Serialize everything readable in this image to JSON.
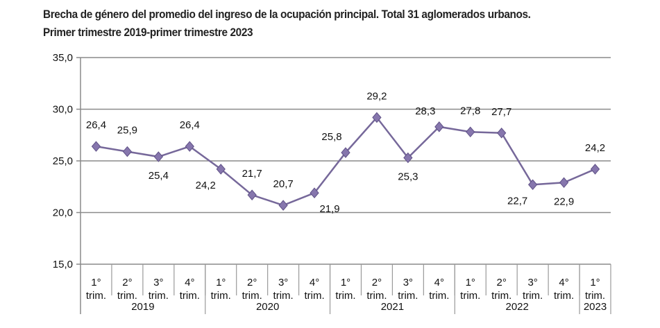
{
  "chart_data": {
    "type": "line",
    "title": "Brecha de género del promedio del ingreso de la ocupación principal. Total 31 aglomerados urbanos.",
    "subtitle": "Primer trimestre 2019-primer trimestre 2023",
    "xlabel": "",
    "ylabel": "",
    "ylim": [
      15,
      35
    ],
    "yticks": [
      "35,0",
      "30,0",
      "25,0",
      "20,0",
      "15,0"
    ],
    "ytick_values": [
      35,
      30,
      25,
      20,
      15
    ],
    "grid": true,
    "categories": [
      {
        "q": "1°",
        "t": "trim."
      },
      {
        "q": "2°",
        "t": "trim."
      },
      {
        "q": "3°",
        "t": "trim."
      },
      {
        "q": "4°",
        "t": "trim."
      },
      {
        "q": "1°",
        "t": "trim."
      },
      {
        "q": "2°",
        "t": "trim."
      },
      {
        "q": "3°",
        "t": "trim."
      },
      {
        "q": "4°",
        "t": "trim."
      },
      {
        "q": "1°",
        "t": "trim."
      },
      {
        "q": "2°",
        "t": "trim."
      },
      {
        "q": "3°",
        "t": "trim."
      },
      {
        "q": "4°",
        "t": "trim."
      },
      {
        "q": "1°",
        "t": "trim."
      },
      {
        "q": "2°",
        "t": "trim."
      },
      {
        "q": "3°",
        "t": "trim."
      },
      {
        "q": "4°",
        "t": "trim."
      },
      {
        "q": "1°",
        "t": "trim."
      }
    ],
    "years": [
      {
        "label": "2019",
        "count": 4
      },
      {
        "label": "2020",
        "count": 4
      },
      {
        "label": "2021",
        "count": 4
      },
      {
        "label": "2022",
        "count": 4
      },
      {
        "label": "2023",
        "count": 1
      }
    ],
    "series": [
      {
        "name": "Brecha de género",
        "color": "#76689a",
        "values": [
          26.4,
          25.9,
          25.4,
          26.4,
          24.2,
          21.7,
          20.7,
          21.9,
          25.8,
          29.2,
          25.3,
          28.3,
          27.8,
          27.7,
          22.7,
          22.9,
          24.2
        ],
        "labels": [
          "26,4",
          "25,9",
          "25,4",
          "26,4",
          "24,2",
          "21,7",
          "20,7",
          "21,9",
          "25,8",
          "29,2",
          "25,3",
          "28,3",
          "27,8",
          "27,7",
          "22,7",
          "22,9",
          "24,2"
        ],
        "label_pos": [
          "above",
          "above",
          "below",
          "above",
          "below-left",
          "above",
          "above",
          "below-right",
          "above-left",
          "above",
          "below",
          "above-left",
          "above",
          "above",
          "below-left",
          "below",
          "above"
        ]
      }
    ]
  }
}
